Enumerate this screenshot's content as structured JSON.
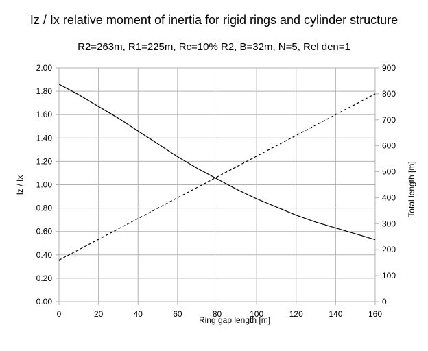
{
  "chart_data": {
    "type": "line",
    "title": "Iz / Ix relative moment of inertia for rigid rings and cylinder structure",
    "subtitle": "R2=263m, R1=225m, Rc=10% R2, B=32m, N=5, Rel den=1",
    "xlabel": "Ring gap length [m]",
    "ylabel": "Iz / Ix",
    "y2label": "Total length [m]",
    "xlim": [
      0,
      160
    ],
    "ylim": [
      0,
      2
    ],
    "y2lim": [
      0,
      900
    ],
    "x_ticks": [
      "0",
      "20",
      "40",
      "60",
      "80",
      "100",
      "120",
      "140",
      "160"
    ],
    "y_ticks": [
      "0.00",
      "0.20",
      "0.40",
      "0.60",
      "0.80",
      "1.00",
      "1.20",
      "1.40",
      "1.60",
      "1.80",
      "2.00"
    ],
    "y2_ticks": [
      "0",
      "100",
      "200",
      "300",
      "400",
      "500",
      "600",
      "700",
      "800",
      "900"
    ],
    "grid": true,
    "series": [
      {
        "axis": "left",
        "style": "solid",
        "color": "#000000",
        "x": [
          0,
          10,
          20,
          30,
          40,
          50,
          60,
          70,
          80,
          90,
          100,
          110,
          120,
          130,
          140,
          150,
          160
        ],
        "values": [
          1.86,
          1.77,
          1.67,
          1.57,
          1.46,
          1.35,
          1.24,
          1.14,
          1.05,
          0.96,
          0.88,
          0.81,
          0.74,
          0.68,
          0.63,
          0.58,
          0.53
        ]
      },
      {
        "axis": "right",
        "style": "dashed",
        "color": "#000000",
        "x": [
          0,
          160
        ],
        "values": [
          160,
          800
        ]
      }
    ]
  }
}
